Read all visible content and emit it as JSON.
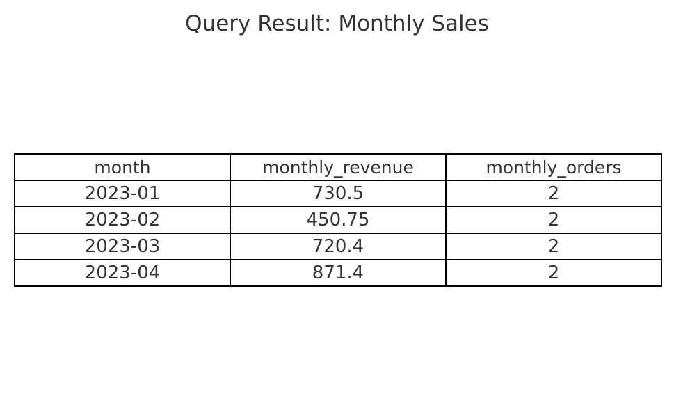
{
  "chart_data": {
    "type": "table",
    "title": "Query Result: Monthly Sales",
    "columns": [
      "month",
      "monthly_revenue",
      "monthly_orders"
    ],
    "rows": [
      [
        "2023-01",
        "730.5",
        "2"
      ],
      [
        "2023-02",
        "450.75",
        "2"
      ],
      [
        "2023-03",
        "720.4",
        "2"
      ],
      [
        "2023-04",
        "871.4",
        "2"
      ]
    ]
  },
  "colors": {
    "text": "#333333",
    "border": "#000000",
    "background": "#ffffff"
  }
}
